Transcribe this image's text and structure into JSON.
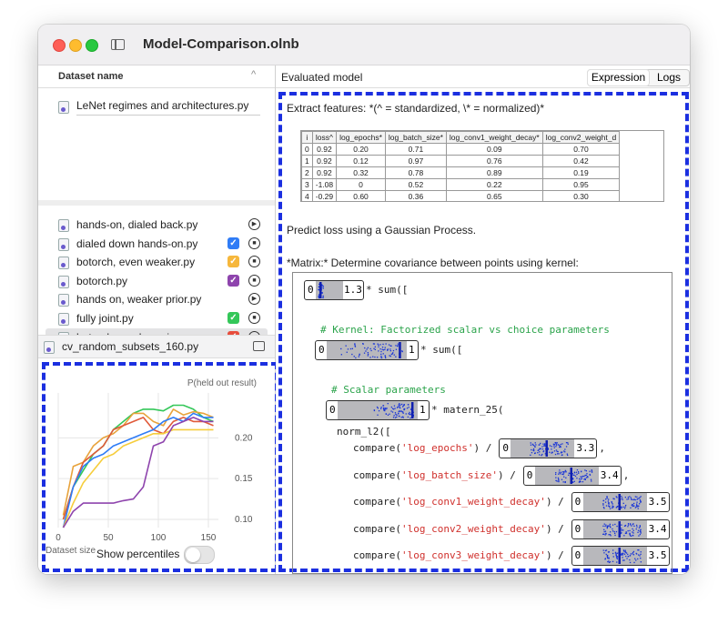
{
  "window": {
    "title": "Model-Comparison.olnb"
  },
  "left": {
    "dataset_header": "Dataset name",
    "dataset_item": "LeNet regimes and architectures.py",
    "models": [
      {
        "label": "hands-on, dialed back.py",
        "checkbox": null,
        "control": "play",
        "selected": false
      },
      {
        "label": "dialed down hands-on.py",
        "checkbox": "#2f7cf6",
        "control": "stop",
        "selected": false
      },
      {
        "label": "botorch, even weaker.py",
        "checkbox": "#f6b73c",
        "control": "stop",
        "selected": false
      },
      {
        "label": "botorch.py",
        "checkbox": "#8e44ad",
        "control": "stop",
        "selected": false
      },
      {
        "label": "hands on, weaker prior.py",
        "checkbox": null,
        "control": "play",
        "selected": false
      },
      {
        "label": "fully joint.py",
        "checkbox": "#34c759",
        "control": "stop",
        "selected": false
      },
      {
        "label": "botorch, weaker prior.py",
        "checkbox": "#e74c3c",
        "control": "stop",
        "selected": true
      }
    ],
    "cv_item": "cv_random_subsets_160.py",
    "show_percentiles": "Show percentiles"
  },
  "chart_data": {
    "type": "line",
    "title": "P(held out result)",
    "xlabel": "Dataset size",
    "ylabel": "",
    "x_ticks": [
      "0",
      "50",
      "100",
      "150"
    ],
    "y_ticks": [
      "0.20",
      "0.15",
      "0.10"
    ],
    "xlim": [
      0,
      160
    ],
    "ylim": [
      0.09,
      0.255
    ],
    "grid": true,
    "series": [
      {
        "color": "#34c759",
        "x": [
          5,
          15,
          25,
          35,
          45,
          55,
          65,
          75,
          85,
          95,
          105,
          115,
          125,
          135,
          145,
          155
        ],
        "y": [
          0.1,
          0.14,
          0.16,
          0.18,
          0.19,
          0.21,
          0.22,
          0.23,
          0.235,
          0.235,
          0.233,
          0.24,
          0.24,
          0.235,
          0.225,
          0.22
        ]
      },
      {
        "color": "#e8a33c",
        "x": [
          5,
          15,
          25,
          35,
          45,
          55,
          65,
          75,
          85,
          95,
          105,
          115,
          125,
          135,
          145,
          155
        ],
        "y": [
          0.105,
          0.165,
          0.17,
          0.19,
          0.2,
          0.205,
          0.215,
          0.23,
          0.23,
          0.22,
          0.215,
          0.235,
          0.228,
          0.232,
          0.23,
          0.225
        ]
      },
      {
        "color": "#e05a3a",
        "x": [
          5,
          15,
          25,
          35,
          45,
          55,
          65,
          75,
          85,
          95,
          105,
          115,
          125,
          135,
          145,
          155
        ],
        "y": [
          0.1,
          0.14,
          0.17,
          0.18,
          0.19,
          0.21,
          0.215,
          0.22,
          0.225,
          0.21,
          0.205,
          0.22,
          0.225,
          0.22,
          0.22,
          0.215
        ]
      },
      {
        "color": "#2f7cf6",
        "x": [
          5,
          15,
          25,
          35,
          45,
          55,
          65,
          75,
          85,
          95,
          105,
          115,
          125,
          135,
          145,
          155
        ],
        "y": [
          0.09,
          0.14,
          0.165,
          0.175,
          0.18,
          0.19,
          0.195,
          0.2,
          0.205,
          0.21,
          0.22,
          0.225,
          0.22,
          0.23,
          0.225,
          0.225
        ]
      },
      {
        "color": "#f6cd3c",
        "x": [
          5,
          15,
          25,
          35,
          45,
          55,
          65,
          75,
          85,
          95,
          105,
          115,
          125,
          135,
          145,
          155
        ],
        "y": [
          0.09,
          0.12,
          0.145,
          0.16,
          0.175,
          0.18,
          0.19,
          0.195,
          0.2,
          0.205,
          0.205,
          0.21,
          0.21,
          0.21,
          0.21,
          0.21
        ]
      },
      {
        "color": "#8e44ad",
        "x": [
          5,
          15,
          25,
          35,
          45,
          55,
          65,
          75,
          85,
          95,
          105,
          115,
          125,
          135,
          145,
          155
        ],
        "y": [
          0.09,
          0.11,
          0.12,
          0.12,
          0.12,
          0.12,
          0.123,
          0.125,
          0.14,
          0.19,
          0.195,
          0.215,
          0.22,
          0.225,
          0.22,
          0.22
        ]
      }
    ]
  },
  "right": {
    "header": "Evaluated model",
    "tabs": [
      "Expression",
      "Logs"
    ],
    "extract": "Extract features: *(^ = standardized, \\* = normalized)*",
    "table": {
      "headers": [
        "i",
        "loss^",
        "log_epochs*",
        "log_batch_size*",
        "log_conv1_weight_decay*",
        "log_conv2_weight_d"
      ],
      "rows": [
        [
          "0",
          "0.92",
          "0.20",
          "0.71",
          "0.09",
          "0.70"
        ],
        [
          "1",
          "0.92",
          "0.12",
          "0.97",
          "0.76",
          "0.42"
        ],
        [
          "2",
          "0.92",
          "0.32",
          "0.78",
          "0.89",
          "0.19"
        ],
        [
          "3",
          "-1.08",
          "0",
          "0.52",
          "0.22",
          "0.95"
        ],
        [
          "4",
          "-0.29",
          "0.60",
          "0.36",
          "0.65",
          "0.30"
        ]
      ]
    },
    "predict": "Predict loss using a Gaussian Process.",
    "matrix": "*Matrix:* Determine covariance between points using kernel:",
    "code": {
      "top": {
        "lo": "0",
        "hi": "1.3",
        "rest": " * sum(["
      },
      "comment1": "# Kernel: Factorized scalar vs choice parameters",
      "kernel": {
        "lo": "0",
        "hi": "1",
        "rest": " * sum(["
      },
      "comment2": "# Scalar parameters",
      "scalar": {
        "lo": "0",
        "hi": "1",
        "rest": " * matern_25("
      },
      "norm": "norm_l2([",
      "compares": [
        {
          "pre": "compare(",
          "name": "'log_epochs'",
          "post": ") / ",
          "lo": "0",
          "hi": "3.3",
          "tail": ","
        },
        {
          "pre": "compare(",
          "name": "'log_batch_size'",
          "post": ") / ",
          "lo": "0",
          "hi": "3.4",
          "tail": ","
        },
        {
          "pre": "compare(",
          "name": "'log_conv1_weight_decay'",
          "post": ") / ",
          "lo": "0",
          "hi": "3.5",
          "tail": ","
        },
        {
          "pre": "compare(",
          "name": "'log_conv2_weight_decay'",
          "post": ") / ",
          "lo": "0",
          "hi": "3.4",
          "tail": ","
        },
        {
          "pre": "compare(",
          "name": "'log_conv3_weight_decay'",
          "post": ") / ",
          "lo": "0",
          "hi": "3.5",
          "tail": ","
        }
      ]
    }
  }
}
